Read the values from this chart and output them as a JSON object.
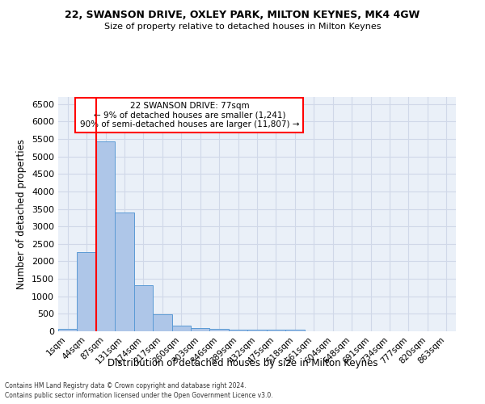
{
  "title1": "22, SWANSON DRIVE, OXLEY PARK, MILTON KEYNES, MK4 4GW",
  "title2": "Size of property relative to detached houses in Milton Keynes",
  "xlabel": "Distribution of detached houses by size in Milton Keynes",
  "ylabel": "Number of detached properties",
  "footer1": "Contains HM Land Registry data © Crown copyright and database right 2024.",
  "footer2": "Contains public sector information licensed under the Open Government Licence v3.0.",
  "annotation_title": "22 SWANSON DRIVE: 77sqm",
  "annotation_line2": "← 9% of detached houses are smaller (1,241)",
  "annotation_line3": "90% of semi-detached houses are larger (11,807) →",
  "bar_color": "#aec6e8",
  "bar_edge_color": "#5b9bd5",
  "vline_color": "red",
  "annotation_box_color": "white",
  "annotation_box_edge": "red",
  "categories": [
    "1sqm",
    "44sqm",
    "87sqm",
    "131sqm",
    "174sqm",
    "217sqm",
    "260sqm",
    "303sqm",
    "346sqm",
    "389sqm",
    "432sqm",
    "475sqm",
    "518sqm",
    "561sqm",
    "604sqm",
    "648sqm",
    "691sqm",
    "734sqm",
    "777sqm",
    "820sqm",
    "863sqm"
  ],
  "values": [
    70,
    2270,
    5420,
    3390,
    1310,
    480,
    165,
    85,
    65,
    55,
    50,
    45,
    40,
    0,
    0,
    0,
    0,
    0,
    0,
    0,
    0
  ],
  "ylim": [
    0,
    6700
  ],
  "yticks": [
    0,
    500,
    1000,
    1500,
    2000,
    2500,
    3000,
    3500,
    4000,
    4500,
    5000,
    5500,
    6000,
    6500
  ],
  "grid_color": "#d0d8e8",
  "bg_color": "#eaf0f8",
  "vline_x_index": 1.5
}
